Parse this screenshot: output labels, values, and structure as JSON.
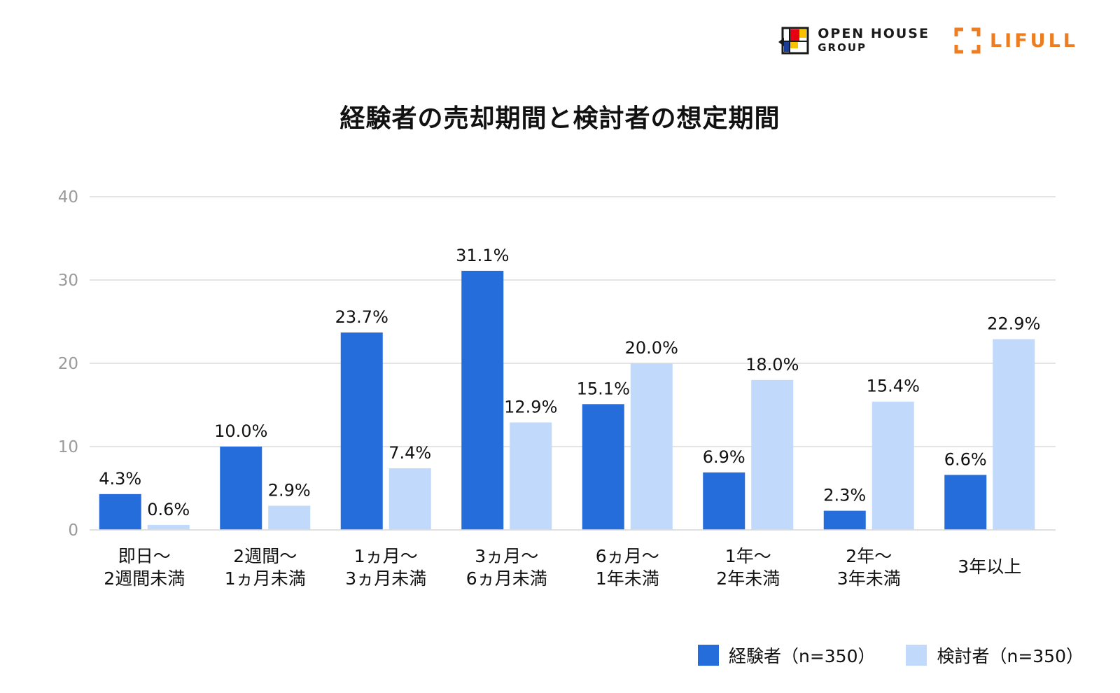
{
  "logos": {
    "openhouse_line1": "OPEN HOUSE",
    "openhouse_line2": "GROUP",
    "lifull": "LIFULL"
  },
  "colors": {
    "series1": "#246ddb",
    "series2": "#c1d9fa",
    "grid": "#dcdcdc",
    "axis_text": "#9a9a9a",
    "lifull_orange": "#ee7d21"
  },
  "legend": {
    "series1": "経験者（n=350）",
    "series2": "検討者（n=350）"
  },
  "chart_data": {
    "type": "bar",
    "title": "経験者の売却期間と検討者の想定期間",
    "ylim": [
      0,
      40
    ],
    "yticks": [
      "0",
      "10",
      "20",
      "30",
      "40"
    ],
    "grid": true,
    "legend_position": "bottom-right",
    "categories": [
      [
        "即日～",
        "2週間未満"
      ],
      [
        "2週間～",
        "1ヵ月未満"
      ],
      [
        "1ヵ月～",
        "3ヵ月未満"
      ],
      [
        "3ヵ月～",
        "6ヵ月未満"
      ],
      [
        "6ヵ月～",
        "1年未満"
      ],
      [
        "1年～",
        "2年未満"
      ],
      [
        "2年～",
        "3年未満"
      ],
      [
        "3年以上"
      ]
    ],
    "series": [
      {
        "name": "経験者（n=350）",
        "values": [
          4.3,
          10.0,
          23.7,
          31.1,
          15.1,
          6.9,
          2.3,
          6.6
        ],
        "labels": [
          "4.3%",
          "10.0%",
          "23.7%",
          "31.1%",
          "15.1%",
          "6.9%",
          "2.3%",
          "6.6%"
        ]
      },
      {
        "name": "検討者（n=350）",
        "values": [
          0.6,
          2.9,
          7.4,
          12.9,
          20.0,
          18.0,
          15.4,
          22.9
        ],
        "labels": [
          "0.6%",
          "2.9%",
          "7.4%",
          "12.9%",
          "20.0%",
          "18.0%",
          "15.4%",
          "22.9%"
        ]
      }
    ]
  }
}
